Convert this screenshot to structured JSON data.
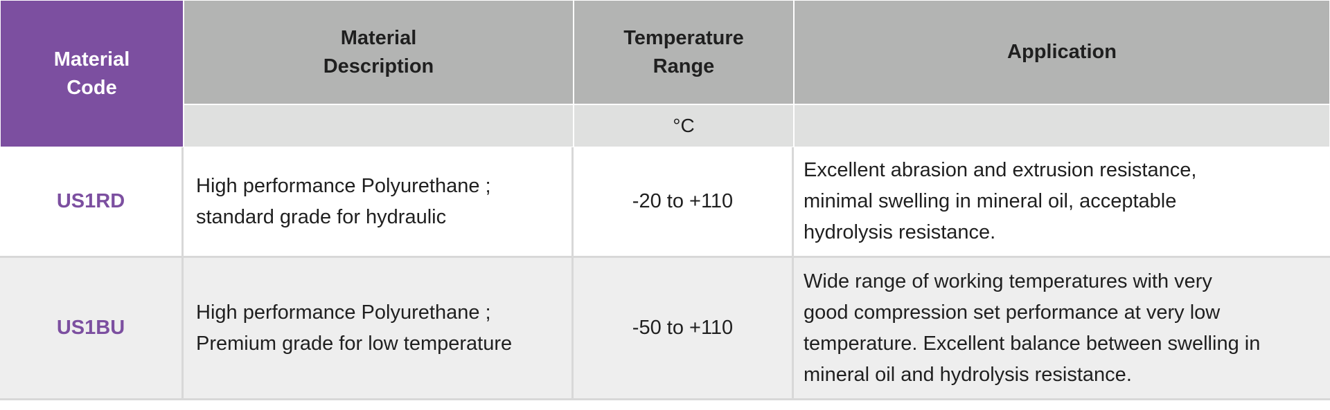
{
  "header": {
    "code_line1": "Material",
    "code_line2": "Code",
    "desc_line1": "Material",
    "desc_line2": "Description",
    "temp_line1": "Temperature",
    "temp_line2": "Range",
    "application": "Application",
    "temp_unit": "°C"
  },
  "rows": [
    {
      "code": "US1RD",
      "description": [
        "High performance Polyurethane ;",
        "standard grade for hydraulic"
      ],
      "temperature": "-20 to +110",
      "application": [
        "Excellent abrasion and extrusion resistance,",
        "minimal swelling in mineral oil, acceptable",
        "hydrolysis resistance."
      ]
    },
    {
      "code": "US1BU",
      "description": [
        "High performance Polyurethane ;",
        "Premium grade for low temperature"
      ],
      "temperature": "-50 to +110",
      "application": [
        "Wide range of working temperatures with very",
        "good compression set performance at very low",
        "temperature. Excellent balance between swelling in",
        "mineral oil and hydrolysis resistance."
      ]
    }
  ],
  "colors": {
    "header_accent": "#7c4fa0",
    "header_grey": "#b3b4b3",
    "subheader_grey": "#dfe0df",
    "row_alt": "#eeeeee",
    "code_text": "#7c4fa0"
  }
}
